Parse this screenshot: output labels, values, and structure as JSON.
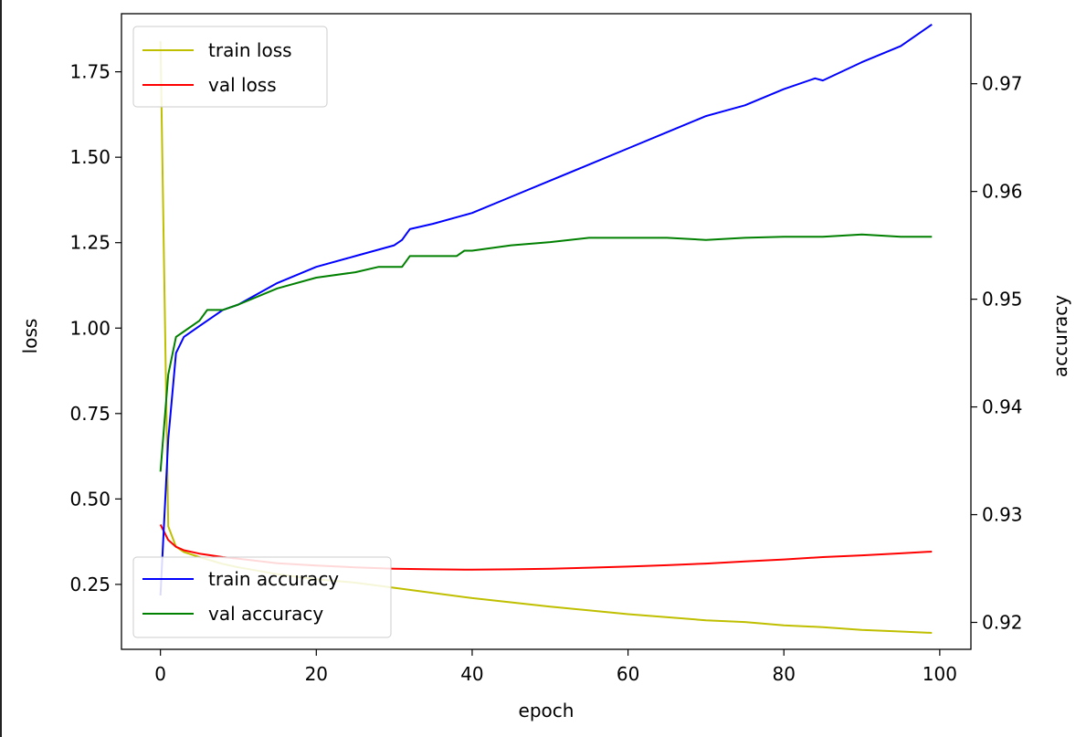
{
  "chart_data": {
    "type": "line",
    "xlabel": "epoch",
    "ylabel": "loss",
    "y2label": "accuracy",
    "xlim": [
      -5,
      104
    ],
    "ylim": [
      0.06,
      1.92
    ],
    "y2lim": [
      0.9175,
      0.9765
    ],
    "xticks": [
      0,
      20,
      40,
      60,
      80,
      100
    ],
    "yticks": [
      0.25,
      0.5,
      0.75,
      1.0,
      1.25,
      1.5,
      1.75
    ],
    "ytick_labels": [
      "0.25",
      "0.50",
      "0.75",
      "1.00",
      "1.25",
      "1.50",
      "1.75"
    ],
    "y2ticks": [
      0.92,
      0.93,
      0.94,
      0.95,
      0.96,
      0.97
    ],
    "y2tick_labels": [
      "0.92",
      "0.93",
      "0.94",
      "0.95",
      "0.96",
      "0.97"
    ],
    "grid": false,
    "legend_loss": {
      "placement": "top-left",
      "entries": [
        "train loss",
        "val loss"
      ]
    },
    "legend_acc": {
      "placement": "bottom-left",
      "entries": [
        "train accuracy",
        "val accuracy"
      ]
    },
    "series": [
      {
        "name": "train loss",
        "axis": "left",
        "color": "#bfbf00",
        "x": [
          0,
          1,
          2,
          3,
          5,
          8,
          10,
          15,
          20,
          25,
          30,
          40,
          50,
          60,
          70,
          75,
          80,
          85,
          90,
          95,
          99
        ],
        "y": [
          1.84,
          0.42,
          0.36,
          0.345,
          0.33,
          0.31,
          0.3,
          0.28,
          0.265,
          0.255,
          0.24,
          0.21,
          0.185,
          0.163,
          0.145,
          0.14,
          0.13,
          0.125,
          0.117,
          0.112,
          0.108
        ]
      },
      {
        "name": "val loss",
        "axis": "left",
        "color": "#ff0000",
        "x": [
          0,
          1,
          2,
          3,
          5,
          8,
          10,
          15,
          20,
          25,
          30,
          35,
          40,
          45,
          50,
          55,
          60,
          65,
          70,
          75,
          80,
          85,
          90,
          95,
          99
        ],
        "y": [
          0.425,
          0.38,
          0.36,
          0.35,
          0.34,
          0.33,
          0.325,
          0.312,
          0.305,
          0.3,
          0.296,
          0.294,
          0.293,
          0.294,
          0.296,
          0.299,
          0.302,
          0.306,
          0.311,
          0.317,
          0.323,
          0.33,
          0.335,
          0.341,
          0.346
        ]
      },
      {
        "name": "train accuracy",
        "axis": "right",
        "color": "#0000ff",
        "x": [
          0,
          1,
          2,
          3,
          5,
          8,
          10,
          15,
          20,
          25,
          30,
          31,
          32,
          35,
          40,
          45,
          50,
          55,
          60,
          65,
          70,
          75,
          80,
          84,
          85,
          90,
          95,
          99
        ],
        "y": [
          0.9225,
          0.937,
          0.945,
          0.9465,
          0.9475,
          0.949,
          0.9495,
          0.9515,
          0.953,
          0.954,
          0.955,
          0.9555,
          0.9565,
          0.957,
          0.958,
          0.9595,
          0.961,
          0.9625,
          0.964,
          0.9655,
          0.967,
          0.968,
          0.9695,
          0.9705,
          0.9703,
          0.972,
          0.9735,
          0.9755
        ]
      },
      {
        "name": "val accuracy",
        "axis": "right",
        "color": "#008000",
        "x": [
          0,
          1,
          2,
          3,
          5,
          6,
          8,
          10,
          15,
          20,
          25,
          28,
          30,
          31,
          32,
          35,
          38,
          39,
          40,
          45,
          50,
          55,
          60,
          65,
          70,
          75,
          80,
          85,
          90,
          95,
          99
        ],
        "y": [
          0.934,
          0.943,
          0.9465,
          0.947,
          0.948,
          0.949,
          0.949,
          0.9495,
          0.951,
          0.952,
          0.9525,
          0.953,
          0.953,
          0.953,
          0.954,
          0.954,
          0.954,
          0.9545,
          0.9545,
          0.955,
          0.9553,
          0.9557,
          0.9557,
          0.9557,
          0.9555,
          0.9557,
          0.9558,
          0.9558,
          0.956,
          0.9558,
          0.9558
        ]
      }
    ]
  }
}
